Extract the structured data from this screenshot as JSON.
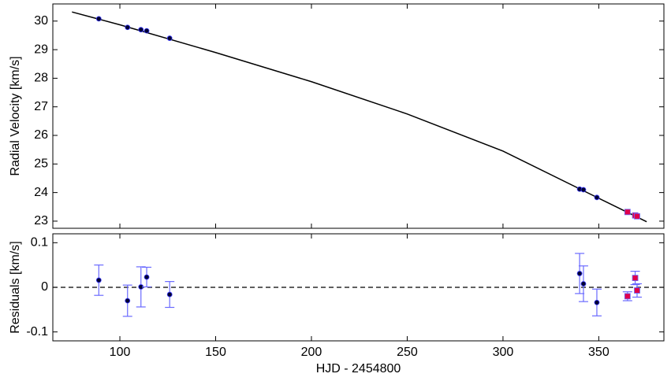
{
  "chart_data": [
    {
      "type": "scatter",
      "ylabel": "Radial Velocity [km/s]",
      "xlim": [
        65,
        384
      ],
      "ylim": [
        22.75,
        30.6
      ],
      "yticks": [
        23,
        24,
        25,
        26,
        27,
        28,
        29,
        30
      ],
      "series": [
        {
          "style": "line",
          "color": "#000000",
          "x": [
            75,
            100,
            150,
            200,
            250,
            300,
            350,
            375
          ],
          "values": [
            30.32,
            29.87,
            28.9,
            27.88,
            26.75,
            25.45,
            23.8,
            22.98
          ]
        },
        {
          "marker": "circle",
          "color": "#000033",
          "x": [
            89,
            104,
            111,
            114,
            126,
            340,
            342,
            349
          ],
          "values": [
            30.08,
            29.78,
            29.7,
            29.66,
            29.4,
            24.12,
            24.1,
            23.83
          ]
        },
        {
          "marker": "square",
          "color": "#e0004a",
          "x": [
            365,
            369,
            370
          ],
          "values": [
            23.32,
            23.2,
            23.17
          ]
        }
      ]
    },
    {
      "type": "scatter",
      "xlabel": "HJD - 2454800",
      "ylabel": "Residuals [km/s]",
      "xlim": [
        65,
        384
      ],
      "ylim": [
        -0.12,
        0.12
      ],
      "xticks": [
        100,
        150,
        200,
        250,
        300,
        350
      ],
      "yticks": [
        -0.1,
        0,
        0.1
      ],
      "zero_line": true,
      "error_color": "#6a6aff",
      "series": [
        {
          "marker": "circle",
          "color": "#000033",
          "x": [
            89,
            104,
            111,
            114,
            126,
            340,
            342,
            349
          ],
          "values": [
            0.016,
            -0.03,
            0.001,
            0.023,
            -0.016,
            0.031,
            0.008,
            -0.034
          ],
          "errors": [
            0.034,
            0.035,
            0.045,
            0.022,
            0.029,
            0.045,
            0.04,
            0.03
          ]
        },
        {
          "marker": "square",
          "color": "#e0004a",
          "x": [
            365,
            369,
            370
          ],
          "values": [
            -0.02,
            0.021,
            -0.007
          ],
          "errors": [
            0.01,
            0.015,
            0.015
          ]
        }
      ]
    }
  ]
}
